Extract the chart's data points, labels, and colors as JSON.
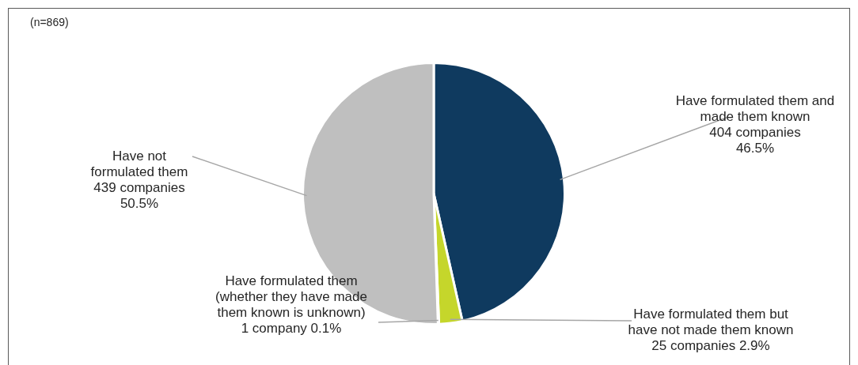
{
  "chart_data": {
    "type": "pie",
    "categories": [
      "Have formulated them and made them known",
      "Have formulated them but have not made them known",
      "Have formulated them (whether they have made them known is unknown)",
      "Have not formulated them"
    ],
    "values": [
      404,
      25,
      1,
      439
    ],
    "colors": [
      "#0f3a5f",
      "#c5d62b",
      "#e6e6e6",
      "#bfbfbf"
    ],
    "value_labels": [
      "404 companies 46.5%",
      "25 companies 2.9%",
      "1 company 0.1%",
      "439 companies 50.5%"
    ],
    "annotations": [
      "(n=869)"
    ],
    "legend": false
  }
}
